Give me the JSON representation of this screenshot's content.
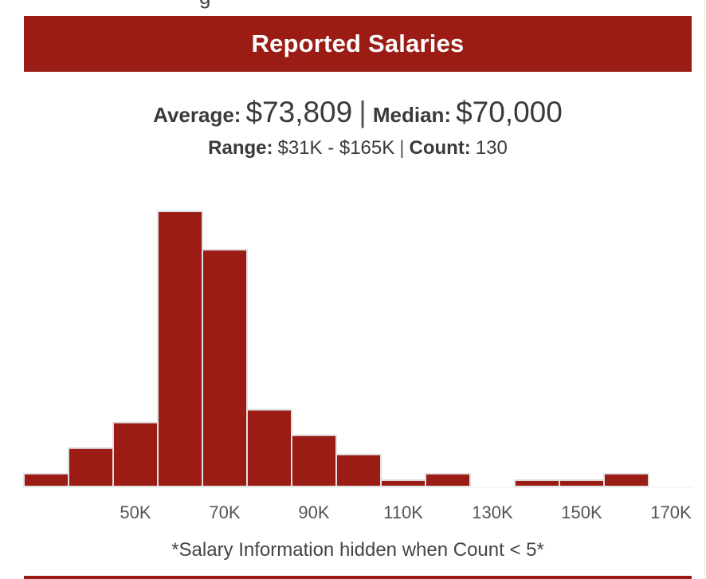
{
  "header": {
    "clipped_text": "g",
    "title": "Reported Salaries"
  },
  "stats": {
    "average_label": "Average:",
    "average_value": "$73,809",
    "separator": "|",
    "median_label": "Median:",
    "median_value": "$70,000",
    "range_label": "Range:",
    "range_value": "$31K - $165K",
    "count_label": "Count:",
    "count_value": "130"
  },
  "footnote": "*Salary Information hidden when Count < 5*",
  "colors": {
    "accent": "#9b1c15",
    "bar_fill": "#9b1c15",
    "bar_stroke": "#e0e0e0"
  },
  "chart_data": {
    "type": "bar",
    "subtype": "histogram",
    "bin_width": 10000,
    "bins": [
      {
        "from": 25000,
        "to": 35000,
        "count": 2
      },
      {
        "from": 35000,
        "to": 45000,
        "count": 6
      },
      {
        "from": 45000,
        "to": 55000,
        "count": 10
      },
      {
        "from": 55000,
        "to": 65000,
        "count": 43
      },
      {
        "from": 65000,
        "to": 75000,
        "count": 37
      },
      {
        "from": 75000,
        "to": 85000,
        "count": 12
      },
      {
        "from": 85000,
        "to": 95000,
        "count": 8
      },
      {
        "from": 95000,
        "to": 105000,
        "count": 5
      },
      {
        "from": 105000,
        "to": 115000,
        "count": 1
      },
      {
        "from": 115000,
        "to": 125000,
        "count": 2
      },
      {
        "from": 125000,
        "to": 135000,
        "count": 0
      },
      {
        "from": 135000,
        "to": 145000,
        "count": 1
      },
      {
        "from": 145000,
        "to": 155000,
        "count": 1
      },
      {
        "from": 155000,
        "to": 165000,
        "count": 2
      }
    ],
    "x_ticks": [
      {
        "value": 50000,
        "label": "50K"
      },
      {
        "value": 70000,
        "label": "70K"
      },
      {
        "value": 90000,
        "label": "90K"
      },
      {
        "value": 110000,
        "label": "110K"
      },
      {
        "value": 130000,
        "label": "130K"
      },
      {
        "value": 150000,
        "label": "150K"
      },
      {
        "value": 170000,
        "label": "170K"
      }
    ],
    "xlim": [
      25000,
      175000
    ],
    "ylim": [
      0,
      43
    ],
    "xlabel": "",
    "ylabel": "",
    "grid": false,
    "legend": "none"
  }
}
